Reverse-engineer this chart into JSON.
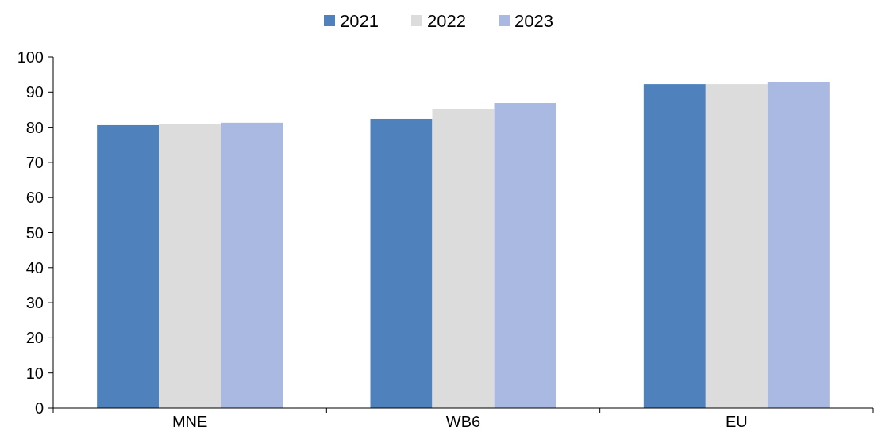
{
  "chart_data": {
    "type": "bar",
    "categories": [
      "MNE",
      "WB6",
      "EU"
    ],
    "series": [
      {
        "name": "2021",
        "color": "#4f81bd",
        "values": [
          80.6,
          82.4,
          92.3
        ]
      },
      {
        "name": "2022",
        "color": "#dcdcdc",
        "values": [
          80.8,
          85.3,
          92.3
        ]
      },
      {
        "name": "2023",
        "color": "#a9b9e2",
        "values": [
          81.3,
          86.9,
          93.0
        ]
      }
    ],
    "ylim": [
      0,
      100
    ],
    "yticks": [
      0,
      10,
      20,
      30,
      40,
      50,
      60,
      70,
      80,
      90,
      100
    ],
    "grid": false,
    "legend": "top"
  }
}
